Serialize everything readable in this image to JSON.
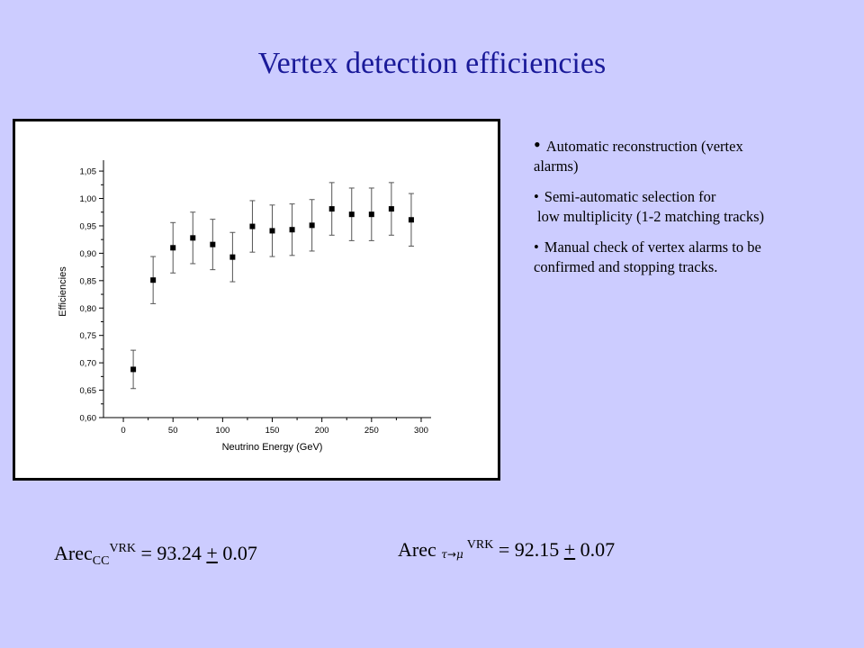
{
  "slide": {
    "title": "Vertex detection efficiencies",
    "background_color": "#ccccff",
    "title_color": "#1a1a99"
  },
  "bullets": [
    {
      "lines": [
        "Automatic reconstruction (vertex",
        "alarms)"
      ]
    },
    {
      "lines": [
        "Semi-automatic selection for",
        "low multiplicity (1-2 matching tracks)"
      ]
    },
    {
      "lines": [
        "Manual check of vertex alarms to be",
        "confirmed and stopping tracks."
      ]
    }
  ],
  "formulas": {
    "cc": {
      "prefix": "Arec",
      "sub": "CC",
      "sup": "VRK",
      "eq": " = 93.24 ",
      "pm": "+",
      "err": " 0.07"
    },
    "tau_mu": {
      "prefix": "Arec ",
      "tau": "τ",
      "arrow": "→",
      "mu": "μ",
      "sup": "VRK",
      "eq": " = 92.15 ",
      "pm": "+",
      "err": " 0.07"
    }
  },
  "chart_data": {
    "type": "scatter",
    "xlabel": "Neutrino Energy (GeV)",
    "ylabel": "Efficiencies",
    "xlim": [
      -20,
      310
    ],
    "ylim": [
      0.6,
      1.06
    ],
    "x_ticks": [
      0,
      50,
      100,
      150,
      200,
      250,
      300
    ],
    "x_tick_labels": [
      "0",
      "50",
      "100",
      "150",
      "200",
      "250",
      "300"
    ],
    "y_ticks": [
      0.6,
      0.65,
      0.7,
      0.75,
      0.8,
      0.85,
      0.9,
      0.95,
      1.0,
      1.05
    ],
    "y_tick_labels": [
      "0,60",
      "0,65",
      "0,70",
      "0,75",
      "0,80",
      "0,85",
      "0,90",
      "0,95",
      "1,00",
      "1,05"
    ],
    "marker": "square",
    "grid": false,
    "series": [
      {
        "x": [
          10,
          30,
          50,
          70,
          90,
          110,
          130,
          150,
          170,
          190,
          210,
          230,
          250,
          270,
          290
        ],
        "y": [
          0.688,
          0.851,
          0.91,
          0.928,
          0.916,
          0.893,
          0.949,
          0.941,
          0.943,
          0.951,
          0.981,
          0.971,
          0.971,
          0.981,
          0.961
        ],
        "err_low": [
          0.035,
          0.043,
          0.046,
          0.047,
          0.046,
          0.045,
          0.047,
          0.047,
          0.047,
          0.047,
          0.048,
          0.048,
          0.048,
          0.048,
          0.048
        ],
        "err_high": [
          0.035,
          0.043,
          0.046,
          0.047,
          0.046,
          0.045,
          0.047,
          0.047,
          0.047,
          0.047,
          0.048,
          0.048,
          0.048,
          0.048,
          0.048
        ]
      }
    ]
  }
}
